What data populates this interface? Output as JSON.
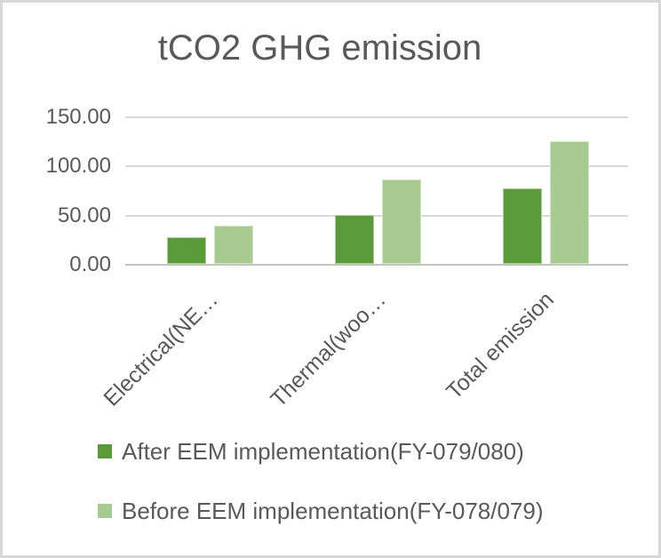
{
  "title": "tCO2 GHG emission",
  "chart_data": {
    "type": "bar",
    "title": "tCO2 GHG emission",
    "categories": [
      "Electrical(NE…",
      "Thermal(woo…",
      "Total emission"
    ],
    "series": [
      {
        "name": "After EEM implementation(FY-079/080)",
        "color": "#5a9a3a",
        "values": [
          27,
          50,
          77
        ]
      },
      {
        "name": "Before EEM implementation(FY-078/079)",
        "color": "#a6ca8f",
        "values": [
          39,
          86,
          125
        ]
      }
    ],
    "xlabel": "",
    "ylabel": "",
    "ylim": [
      0,
      150
    ],
    "ytick_interval": 50,
    "ytick_labels": [
      "150.00",
      "100.00",
      "50.00",
      "0.00"
    ],
    "grid": "horizontal",
    "legend_position": "bottom-left"
  },
  "colors": {
    "after_series": "#5a9a3a",
    "before_series": "#a6ca8f",
    "text": "#595959",
    "gridline": "#d9d9d9",
    "axis_line": "#c3c3c3",
    "background": "#ffffff",
    "frame_border": "#d7d7d7"
  }
}
